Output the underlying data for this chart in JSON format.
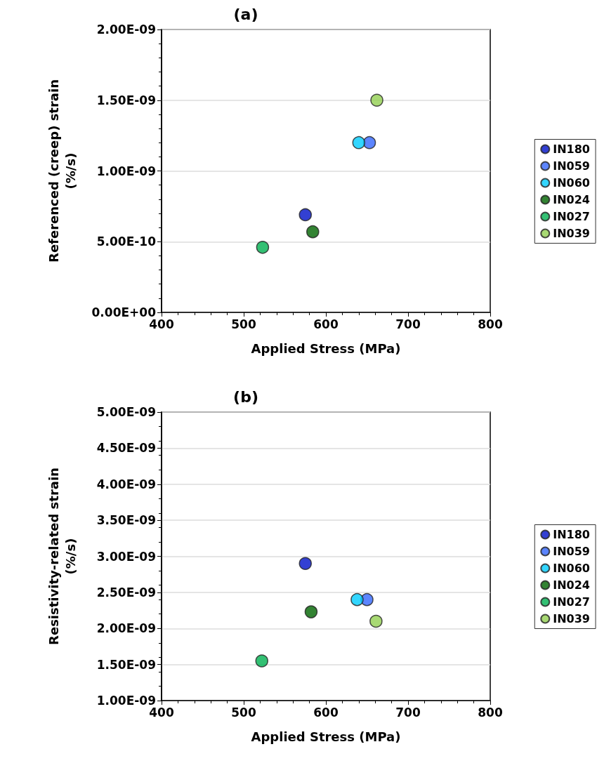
{
  "chart_data": [
    {
      "type": "scatter",
      "title": "(a)",
      "xlabel": "Applied Stress (MPa)",
      "ylabel": "Referenced (creep) strain\n(%/s)",
      "xlim": [
        400,
        800
      ],
      "xticks": [
        400,
        500,
        600,
        700,
        800
      ],
      "ylim": [
        0,
        2e-09
      ],
      "yticks": [
        {
          "value": 0,
          "label": "0.00E+00"
        },
        {
          "value": 5e-10,
          "label": "5.00E-10"
        },
        {
          "value": 1e-09,
          "label": "1.00E-09"
        },
        {
          "value": 1.5e-09,
          "label": "1.50E-09"
        },
        {
          "value": 2e-09,
          "label": "2.00E-09"
        }
      ],
      "grid": "y",
      "legend": "right",
      "marker": "circle",
      "series": [
        {
          "name": "IN180",
          "color": "#0010c8",
          "x": [
            575
          ],
          "values": [
            6.9e-10
          ]
        },
        {
          "name": "IN059",
          "color": "#3366ff",
          "x": [
            653
          ],
          "values": [
            1.2e-09
          ]
        },
        {
          "name": "IN060",
          "color": "#00ccff",
          "x": [
            640
          ],
          "values": [
            1.2e-09
          ]
        },
        {
          "name": "IN024",
          "color": "#006400",
          "x": [
            584
          ],
          "values": [
            5.7e-10
          ]
        },
        {
          "name": "IN027",
          "color": "#00b050",
          "x": [
            523
          ],
          "values": [
            4.6e-10
          ]
        },
        {
          "name": "IN039",
          "color": "#92d050",
          "x": [
            662
          ],
          "values": [
            1.5e-09
          ]
        }
      ]
    },
    {
      "type": "scatter",
      "title": "(b)",
      "xlabel": "Applied Stress (MPa)",
      "ylabel": "Resistivity-related strain\n(%/s)",
      "xlim": [
        400,
        800
      ],
      "xticks": [
        400,
        500,
        600,
        700,
        800
      ],
      "ylim": [
        1e-09,
        5e-09
      ],
      "yticks": [
        {
          "value": 1e-09,
          "label": "1.00E-09"
        },
        {
          "value": 1.5e-09,
          "label": "1.50E-09"
        },
        {
          "value": 2e-09,
          "label": "2.00E-09"
        },
        {
          "value": 2.5e-09,
          "label": "2.50E-09"
        },
        {
          "value": 3e-09,
          "label": "3.00E-09"
        },
        {
          "value": 3.5e-09,
          "label": "3.50E-09"
        },
        {
          "value": 4e-09,
          "label": "4.00E-09"
        },
        {
          "value": 4.5e-09,
          "label": "4.50E-09"
        },
        {
          "value": 5e-09,
          "label": "5.00E-09"
        }
      ],
      "grid": "y",
      "legend": "right",
      "marker": "circle",
      "series": [
        {
          "name": "IN180",
          "color": "#0010c8",
          "x": [
            575
          ],
          "values": [
            2.9e-09
          ]
        },
        {
          "name": "IN059",
          "color": "#3366ff",
          "x": [
            650
          ],
          "values": [
            2.4e-09
          ]
        },
        {
          "name": "IN060",
          "color": "#00ccff",
          "x": [
            638
          ],
          "values": [
            2.4e-09
          ]
        },
        {
          "name": "IN024",
          "color": "#006400",
          "x": [
            582
          ],
          "values": [
            2.23e-09
          ]
        },
        {
          "name": "IN027",
          "color": "#00b050",
          "x": [
            522
          ],
          "values": [
            1.55e-09
          ]
        },
        {
          "name": "IN039",
          "color": "#92d050",
          "x": [
            661
          ],
          "values": [
            2.1e-09
          ]
        }
      ]
    }
  ]
}
